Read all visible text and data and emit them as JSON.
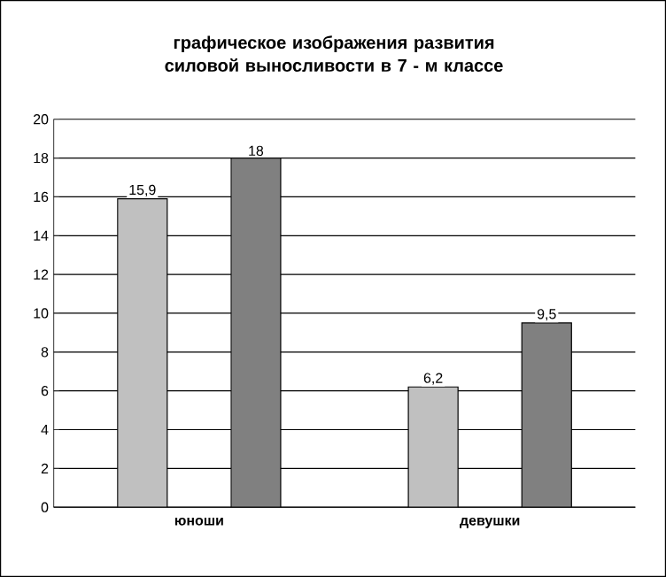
{
  "chart_data": {
    "type": "bar",
    "title": "графическое изображения развития силовой выносливости в 7 - м классе",
    "categories": [
      "юноши",
      "девушки"
    ],
    "series": [
      {
        "color": "#c0c0c0",
        "values": [
          15.9,
          6.2
        ],
        "value_labels": [
          "15,9",
          "6,2"
        ]
      },
      {
        "color": "#808080",
        "values": [
          18,
          9.5
        ],
        "value_labels": [
          "18",
          "9,5"
        ]
      }
    ],
    "ylim": [
      0,
      20
    ],
    "yticks": [
      0,
      2,
      4,
      6,
      8,
      10,
      12,
      14,
      16,
      18,
      20
    ],
    "grid": "y"
  }
}
